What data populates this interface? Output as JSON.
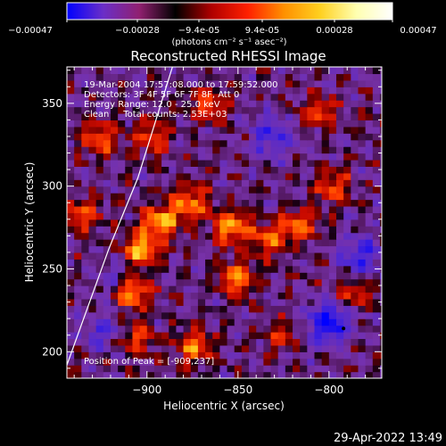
{
  "chart_data": {
    "type": "heatmap",
    "title": "Reconstructed RHESSI Image",
    "xlabel": "Heliocentric X (arcsec)",
    "ylabel": "Heliocentric Y (arcsec)",
    "xlim": [
      -944,
      -771
    ],
    "ylim": [
      184,
      372
    ],
    "x_ticks": [
      {
        "value": -900,
        "label": "−900"
      },
      {
        "value": -850,
        "label": "−850"
      },
      {
        "value": -800,
        "label": "−800"
      }
    ],
    "y_ticks": [
      {
        "value": 200,
        "label": "200"
      },
      {
        "value": 250,
        "label": "250"
      },
      {
        "value": 300,
        "label": "300"
      },
      {
        "value": 350,
        "label": "350"
      }
    ],
    "colorbar": {
      "range": [
        -0.00047,
        0.00047
      ],
      "tick_labels": [
        "−0.00047",
        "−0.00028",
        "−9.4e-05",
        "9.4e-05",
        "0.00028",
        "0.00047"
      ],
      "unit_label": "(photons cm⁻² s⁻¹ asec⁻²)",
      "colors": [
        "#0000ff",
        "#6a2ec8",
        "#902070",
        "#000000",
        "#b00000",
        "#ff2000",
        "#ff9000",
        "#ffd020",
        "#ffffb0",
        "#ffffff"
      ]
    },
    "annotations": [
      "19-Mar-2004 17:57:08.000 to 17:59:52.000",
      "Detectors: 3F 4F 5F 6F 7F 8F, Att 0",
      "Energy Range: 12.0 - 25.0 keV",
      "Clean     Total counts: 2.53E+03"
    ],
    "peak_label": "Position of Peak = [-909,237]",
    "peak": [
      -909,
      237
    ],
    "sources": [
      {
        "x": -909,
        "y": 237,
        "amp": 1.0
      },
      {
        "x": -903,
        "y": 262,
        "amp": 0.85
      },
      {
        "x": -893,
        "y": 279,
        "amp": 0.85
      },
      {
        "x": -876,
        "y": 290,
        "amp": 0.7
      },
      {
        "x": -853,
        "y": 275,
        "amp": 0.8
      },
      {
        "x": -833,
        "y": 268,
        "amp": 0.6
      },
      {
        "x": -816,
        "y": 277,
        "amp": 0.65
      },
      {
        "x": -851,
        "y": 244,
        "amp": 0.7
      },
      {
        "x": -874,
        "y": 203,
        "amp": 0.65
      },
      {
        "x": -906,
        "y": 208,
        "amp": 0.55
      },
      {
        "x": -926,
        "y": 329,
        "amp": 0.6
      },
      {
        "x": -897,
        "y": 330,
        "amp": 0.55
      },
      {
        "x": -866,
        "y": 349,
        "amp": 0.55
      },
      {
        "x": -806,
        "y": 345,
        "amp": 0.5
      },
      {
        "x": -798,
        "y": 300,
        "amp": 0.55
      },
      {
        "x": -786,
        "y": 236,
        "amp": 0.45
      },
      {
        "x": -936,
        "y": 282,
        "amp": 0.55
      },
      {
        "x": -826,
        "y": 210,
        "amp": 0.4
      }
    ],
    "negative_sources": [
      {
        "x": -800,
        "y": 218,
        "amp": 0.85
      },
      {
        "x": -783,
        "y": 258,
        "amp": 0.55
      },
      {
        "x": -832,
        "y": 330,
        "amp": 0.5
      },
      {
        "x": -916,
        "y": 243,
        "amp": 0.45
      },
      {
        "x": -924,
        "y": 212,
        "amp": 0.4
      }
    ],
    "limb_curve": [
      [
        -944,
        192
      ],
      [
        -921,
        262
      ],
      [
        -905,
        305
      ],
      [
        -886,
        372
      ]
    ],
    "marker": {
      "x": -792,
      "y": 214
    }
  },
  "footer_timestamp": "29-Apr-2022 13:49"
}
